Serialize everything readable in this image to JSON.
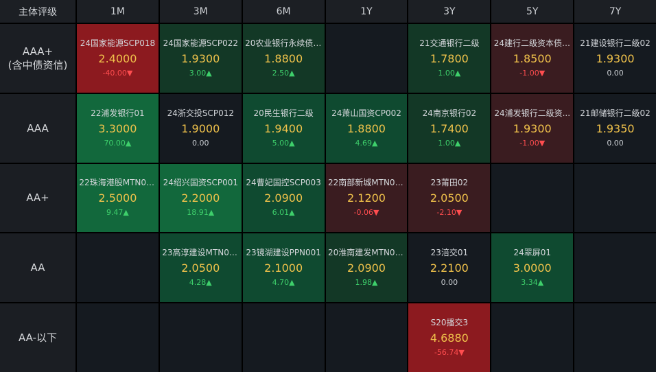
{
  "corner_label": "主体评级",
  "columns": [
    "1M",
    "3M",
    "6M",
    "1Y",
    "3Y",
    "5Y",
    "7Y"
  ],
  "colors": {
    "strong_red": "#8c1a1f",
    "light_red": "#3a1c20",
    "strong_green": "#12683c",
    "mid_green": "#0f4a30",
    "light_green": "#133826",
    "neutral": "#151a20",
    "rate": "#f0c24b",
    "up": "#3ecf6b",
    "down": "#ff4d4f"
  },
  "rows": [
    {
      "label_line1": "AAA+",
      "label_line2": "(含中债资信)",
      "cells": [
        {
          "name": "24国家能源SCP018",
          "rate": "2.4000",
          "change": "-40.00▼",
          "dir": "down",
          "tone": "strong_red"
        },
        {
          "name": "24国家能源SCP022",
          "rate": "1.9300",
          "change": "3.00▲",
          "dir": "up",
          "tone": "light_green"
        },
        {
          "name": "20农业银行永续债01",
          "rate": "1.8800",
          "change": "2.50▲",
          "dir": "up",
          "tone": "light_green"
        },
        null,
        {
          "name": "21交通银行二级",
          "rate": "1.7800",
          "change": "1.00▲",
          "dir": "up",
          "tone": "light_green"
        },
        {
          "name": "24建行二级资本债0...",
          "rate": "1.8500",
          "change": "-1.00▼",
          "dir": "down",
          "tone": "light_red"
        },
        {
          "name": "21建设银行二级02",
          "rate": "1.9300",
          "change": "0.00",
          "dir": "flat",
          "tone": "neutral"
        }
      ]
    },
    {
      "label_line1": "AAA",
      "label_line2": "",
      "cells": [
        {
          "name": "22浦发银行01",
          "rate": "3.3000",
          "change": "70.00▲",
          "dir": "up",
          "tone": "strong_green"
        },
        {
          "name": "24浙交投SCP012",
          "rate": "1.9000",
          "change": "0.00",
          "dir": "flat",
          "tone": "neutral"
        },
        {
          "name": "20民生银行二级",
          "rate": "1.9400",
          "change": "5.00▲",
          "dir": "up",
          "tone": "mid_green"
        },
        {
          "name": "24萧山国资CP002",
          "rate": "1.8800",
          "change": "4.69▲",
          "dir": "up",
          "tone": "mid_green"
        },
        {
          "name": "24南京银行02",
          "rate": "1.7400",
          "change": "1.00▲",
          "dir": "up",
          "tone": "light_green"
        },
        {
          "name": "24浦发银行二级资...",
          "rate": "1.9300",
          "change": "-1.00▼",
          "dir": "down",
          "tone": "light_red"
        },
        {
          "name": "21邮储银行二级02",
          "rate": "1.9350",
          "change": "0.00",
          "dir": "flat",
          "tone": "neutral"
        }
      ]
    },
    {
      "label_line1": "AA+",
      "label_line2": "",
      "cells": [
        {
          "name": "22珠海港股MTN001",
          "rate": "2.5000",
          "change": "9.47▲",
          "dir": "up",
          "tone": "strong_green"
        },
        {
          "name": "24绍兴国资SCP001",
          "rate": "2.2000",
          "change": "18.91▲",
          "dir": "up",
          "tone": "strong_green"
        },
        {
          "name": "24曹妃国控SCP003",
          "rate": "2.0900",
          "change": "6.01▲",
          "dir": "up",
          "tone": "mid_green"
        },
        {
          "name": "22南部新城MTN003",
          "rate": "2.1200",
          "change": "-0.06▼",
          "dir": "down",
          "tone": "light_red"
        },
        {
          "name": "23莆田02",
          "rate": "2.0500",
          "change": "-2.10▼",
          "dir": "down",
          "tone": "light_red"
        },
        null,
        null
      ]
    },
    {
      "label_line1": "AA",
      "label_line2": "",
      "cells": [
        null,
        {
          "name": "23高淳建设MTN001",
          "rate": "2.0500",
          "change": "4.28▲",
          "dir": "up",
          "tone": "mid_green"
        },
        {
          "name": "23镜湖建设PPN001",
          "rate": "2.1000",
          "change": "4.70▲",
          "dir": "up",
          "tone": "mid_green"
        },
        {
          "name": "20淮南建发MTN002",
          "rate": "2.0900",
          "change": "1.98▲",
          "dir": "up",
          "tone": "light_green"
        },
        {
          "name": "23涪交01",
          "rate": "2.2100",
          "change": "0.00",
          "dir": "flat",
          "tone": "neutral"
        },
        {
          "name": "24翠屏01",
          "rate": "3.0000",
          "change": "3.34▲",
          "dir": "up",
          "tone": "mid_green"
        },
        null
      ]
    },
    {
      "label_line1": "AA-以下",
      "label_line2": "",
      "cells": [
        null,
        null,
        null,
        null,
        {
          "name": "S20播交3",
          "rate": "4.6880",
          "change": "-56.74▼",
          "dir": "down",
          "tone": "strong_red"
        },
        null,
        null
      ]
    }
  ]
}
